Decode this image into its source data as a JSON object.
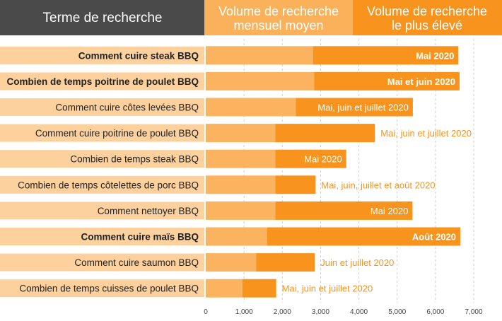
{
  "header": {
    "term_column": "Terme de recherche",
    "volume_column": [
      "Volume de recherche",
      "mensuel moyen"
    ],
    "peak_column": [
      "Volume de recherche",
      "le plus élevé"
    ]
  },
  "colors": {
    "header_dark": "#4a4a4a",
    "header_light": "#fbb15a",
    "header_orange": "#f8941d",
    "bar_light": "#fbb360",
    "bar_dark": "#f8941d",
    "row_band": "#fcd19e",
    "label_text": "#222222",
    "peak_label_inside": "#ffffff",
    "peak_label_outside": "#f8941d",
    "tick_text": "#444444",
    "grid": "#cfcfcf"
  },
  "chart_data": {
    "type": "bar",
    "orientation": "horizontal",
    "stacked": true,
    "xlim": [
      0,
      7000
    ],
    "xticks": [
      "0",
      "1,000",
      "2,000",
      "3,000",
      "4,000",
      "5,000",
      "6,000",
      "7,000"
    ],
    "categories": [
      "Comment cuire steak BBQ",
      "Combien de temps poitrine de poulet BBQ",
      "Comment cuire côtes levées BBQ",
      "Comment cuire poitrine de poulet BBQ",
      "Combien de temps steak BBQ",
      "Combien de temps côtelettes de porc BBQ",
      "Comment nettoyer BBQ",
      "Comment cuire maïs BBQ",
      "Comment cuire saumon BBQ",
      "Combien de temps cuisses de poulet BBQ"
    ],
    "bold": [
      true,
      true,
      false,
      false,
      false,
      false,
      false,
      true,
      false,
      false
    ],
    "series": [
      {
        "name": "Volume de recherche mensuel moyen",
        "values": [
          2800,
          2830,
          2350,
          1820,
          1820,
          1820,
          1820,
          1600,
          1320,
          960
        ]
      },
      {
        "name": "Volume de recherche le plus élevé",
        "values": [
          3800,
          3800,
          3060,
          2600,
          1850,
          1050,
          3580,
          5050,
          1530,
          880
        ]
      }
    ],
    "peak_labels": [
      "Mai 2020",
      "Mai et juin 2020",
      "Mai, juin et juillet 2020",
      "Mai, juin et juillet 2020",
      "Mai 2020",
      "Mai, juin, juillet et août 2020",
      "Mai 2020",
      "Août 2020",
      "Juin et juillet 2020",
      "Mai, juin et juillet 2020"
    ],
    "peak_label_inside": [
      true,
      true,
      true,
      false,
      true,
      false,
      true,
      true,
      false,
      false
    ]
  }
}
